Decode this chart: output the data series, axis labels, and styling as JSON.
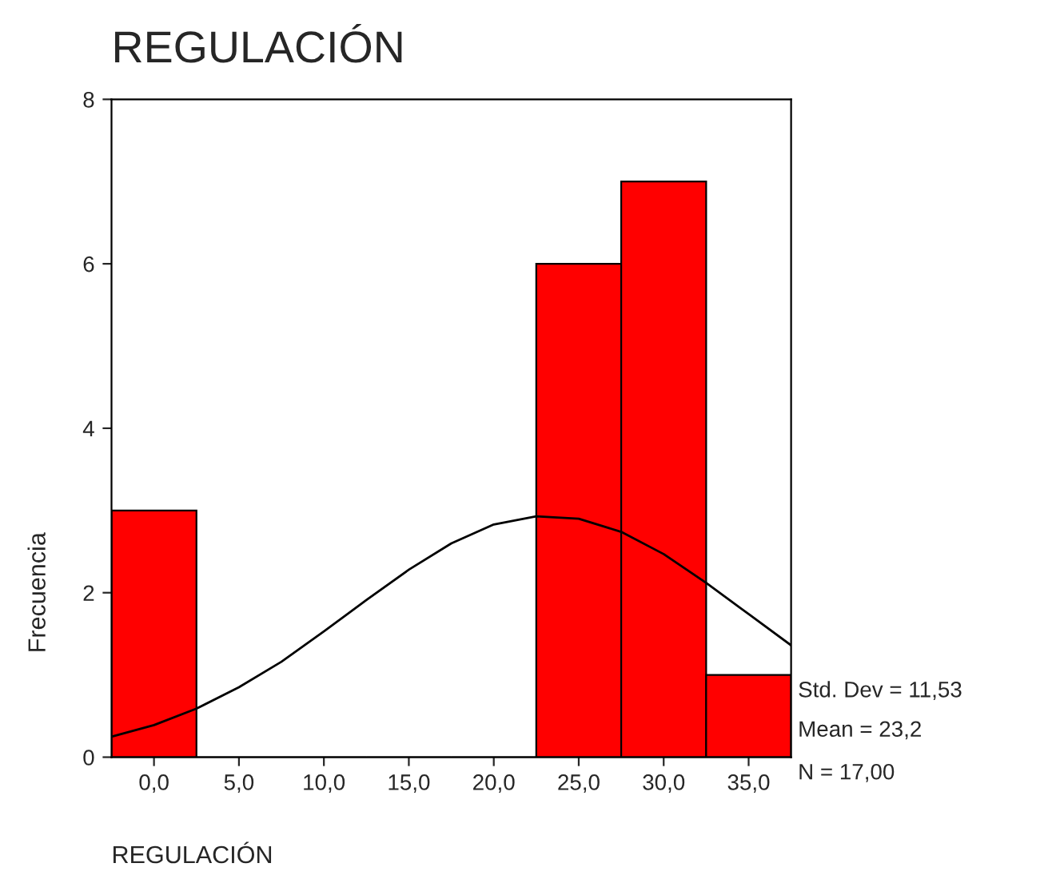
{
  "chart_data": {
    "type": "histogram",
    "title": "REGULACIÓN",
    "xlabel": "REGULACIÓN",
    "ylabel": "Frecuencia",
    "series": [
      {
        "bins": [
          -2.5,
          2.5,
          7.5,
          12.5,
          17.5,
          22.5,
          27.5,
          32.5,
          37.5
        ],
        "values": [
          3,
          0,
          0,
          0,
          0,
          6,
          7,
          1
        ],
        "color": "#ff0000"
      },
      {
        "type": "line",
        "x": [
          -2.5,
          0,
          2.5,
          5,
          7.5,
          10,
          12.5,
          15,
          17.5,
          20,
          22.5,
          25,
          27.5,
          30,
          32.5,
          35,
          37.5
        ],
        "values": [
          0.25,
          0.39,
          0.59,
          0.85,
          1.16,
          1.53,
          1.91,
          2.28,
          2.6,
          2.83,
          2.93,
          2.9,
          2.74,
          2.47,
          2.12,
          1.74,
          1.36
        ],
        "color": "#000000"
      }
    ],
    "xlim": [
      -2.5,
      37.5
    ],
    "ylim": [
      0,
      8
    ],
    "xticks": [
      {
        "value": 0,
        "label": "0,0"
      },
      {
        "value": 5,
        "label": "5,0"
      },
      {
        "value": 10,
        "label": "10,0"
      },
      {
        "value": 15,
        "label": "15,0"
      },
      {
        "value": 20,
        "label": "20,0"
      },
      {
        "value": 25,
        "label": "25,0"
      },
      {
        "value": 30,
        "label": "30,0"
      },
      {
        "value": 35,
        "label": "35,0"
      }
    ],
    "yticks": [
      0,
      2,
      4,
      6,
      8
    ],
    "annotations": [
      "Std. Dev = 11,53",
      "Mean = 23,2",
      "N = 17,00"
    ],
    "grid": false,
    "legend": false
  }
}
